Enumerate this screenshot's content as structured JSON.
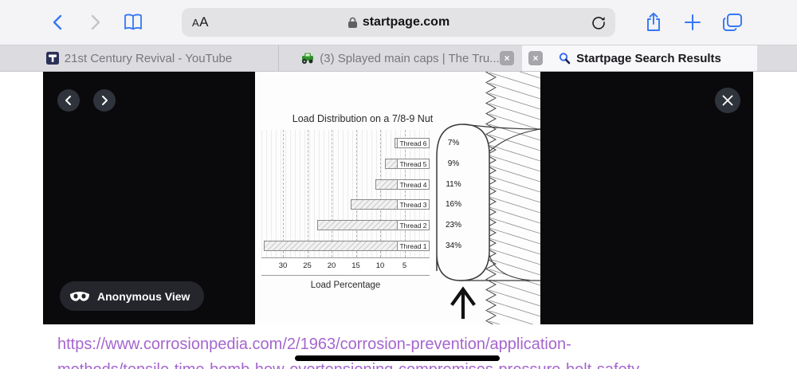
{
  "browser": {
    "toolbar": {
      "text_size_label": "AA",
      "domain": "startpage.com",
      "icons": [
        "back-chevron",
        "forward-chevron",
        "reading-list-book",
        "lock",
        "reload",
        "share",
        "new-tab-plus",
        "tabs-overview"
      ]
    },
    "tabs": [
      {
        "title": "21st Century Revival - YouTube",
        "favicon": "hammer-navy",
        "active": false
      },
      {
        "title": "(3) Splayed main caps | The Tru...",
        "favicon": "tractor-green",
        "active": false,
        "close_glyph": "×"
      },
      {
        "title": "Startpage Search Results",
        "favicon": "startpage-magnifier",
        "active": true,
        "close_glyph": "×"
      }
    ]
  },
  "lightbox": {
    "anonymous_view_label": "Anonymous View",
    "icons": [
      "prev-arrow",
      "next-arrow",
      "close-x",
      "anonymous-mask"
    ]
  },
  "link": {
    "line1": "https://www.corrosionpedia.com/2/1963/corrosion-prevention/application-",
    "line2": "methods/tensile-time-bomb-how-overtensioning-compromises-pressure-bolt-safety"
  },
  "chart_data": {
    "type": "bar",
    "title": "Load Distribution on a 7/8-9 Nut",
    "categories": [
      "Thread 6",
      "Thread 5",
      "Thread 4",
      "Thread 3",
      "Thread 2",
      "Thread 1"
    ],
    "values": [
      7,
      9,
      11,
      16,
      23,
      34
    ],
    "value_labels": [
      "7%",
      "9%",
      "11%",
      "16%",
      "23%",
      "34%"
    ],
    "xlabel": "Load Percentage",
    "x_ticks": [
      30,
      25,
      20,
      15,
      10,
      5
    ],
    "x_axis_reversed": true,
    "xlim": [
      0,
      35
    ],
    "grid": "dashed-vertical",
    "orientation": "horizontal-bars-anchored-right",
    "annotation": "bolt thread cross-section with nut profile at right, load arrow pointing up"
  },
  "colors": {
    "accent_blue": "#3478f6",
    "link_purple": "#a566cf",
    "overlay_black": "#0a0a0c",
    "toolbar_bg": "#f4f3f5",
    "tab_inactive_bg": "#dcdbdf",
    "tab_active_bg": "#f8f7f9"
  }
}
